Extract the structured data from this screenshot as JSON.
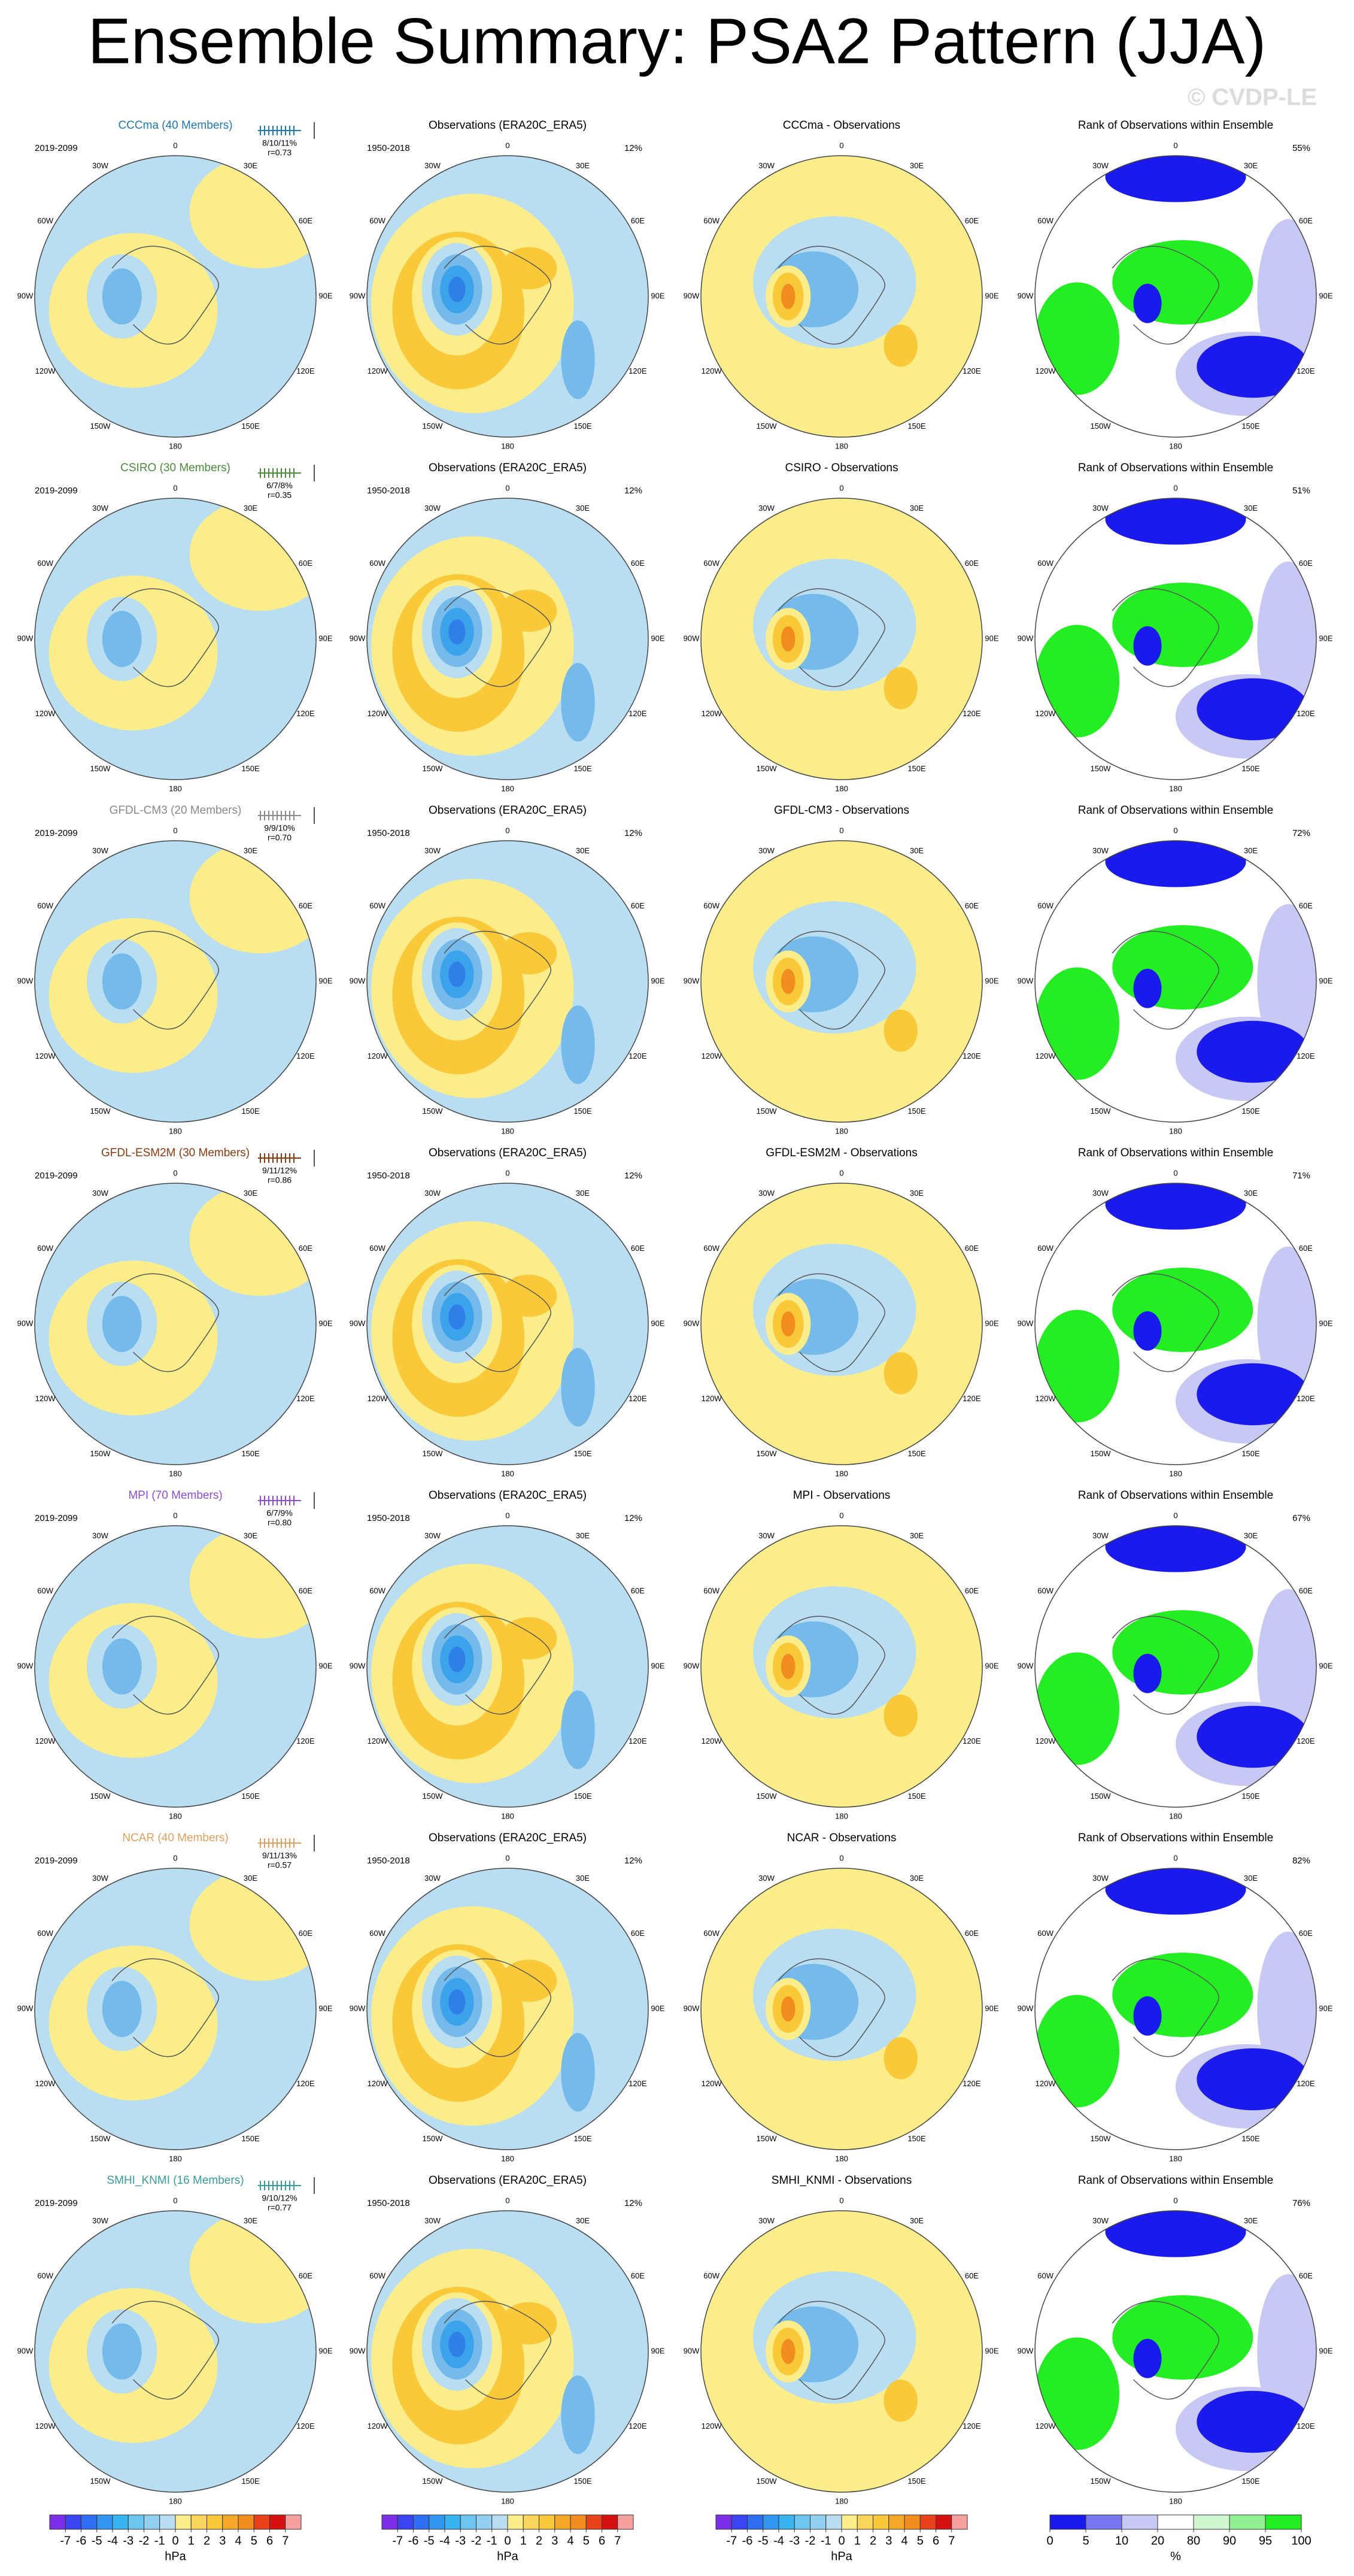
{
  "title": "Ensemble Summary: PSA2 Pattern (JJA)",
  "watermark": "© CVDP-LE",
  "longitude_labels": [
    "0",
    "30E",
    "60E",
    "90E",
    "120E",
    "150E",
    "180",
    "150W",
    "120W",
    "90W",
    "60W",
    "30W"
  ],
  "rows": [
    {
      "model": {
        "title": "CCCma (40 Members)",
        "color": "#1f78b4",
        "period": "2019-2099",
        "stats": "8/10/11%",
        "r": "r=0.73"
      },
      "observations": {
        "title": "Observations (ERA20C_ERA5)",
        "period": "1950-2018",
        "percent": "12%"
      },
      "difference": {
        "title": "CCCma - Observations"
      },
      "rank": {
        "title": "Rank of Observations within Ensemble",
        "percent": "55%"
      }
    },
    {
      "model": {
        "title": "CSIRO (30 Members)",
        "color": "#4c8a3c",
        "period": "2019-2099",
        "stats": "6/7/8%",
        "r": "r=0.35"
      },
      "observations": {
        "title": "Observations (ERA20C_ERA5)",
        "period": "1950-2018",
        "percent": "12%"
      },
      "difference": {
        "title": "CSIRO - Observations"
      },
      "rank": {
        "title": "Rank of Observations within Ensemble",
        "percent": "51%"
      }
    },
    {
      "model": {
        "title": "GFDL-CM3 (20 Members)",
        "color": "#8a8a8a",
        "period": "2019-2099",
        "stats": "9/9/10%",
        "r": "r=0.70"
      },
      "observations": {
        "title": "Observations (ERA20C_ERA5)",
        "period": "1950-2018",
        "percent": "12%"
      },
      "difference": {
        "title": "GFDL-CM3 - Observations"
      },
      "rank": {
        "title": "Rank of Observations within Ensemble",
        "percent": "72%"
      }
    },
    {
      "model": {
        "title": "GFDL-ESM2M (30 Members)",
        "color": "#8b3a10",
        "period": "2019-2099",
        "stats": "9/11/12%",
        "r": "r=0.86"
      },
      "observations": {
        "title": "Observations (ERA20C_ERA5)",
        "period": "1950-2018",
        "percent": "12%"
      },
      "difference": {
        "title": "GFDL-ESM2M - Observations"
      },
      "rank": {
        "title": "Rank of Observations within Ensemble",
        "percent": "71%"
      }
    },
    {
      "model": {
        "title": "MPI (70 Members)",
        "color": "#8a4fd8",
        "period": "2019-2099",
        "stats": "6/7/9%",
        "r": "r=0.80"
      },
      "observations": {
        "title": "Observations (ERA20C_ERA5)",
        "period": "1950-2018",
        "percent": "12%"
      },
      "difference": {
        "title": "MPI - Observations"
      },
      "rank": {
        "title": "Rank of Observations within Ensemble",
        "percent": "67%"
      }
    },
    {
      "model": {
        "title": "NCAR (40 Members)",
        "color": "#e0a060",
        "period": "2019-2099",
        "stats": "9/11/13%",
        "r": "r=0.57"
      },
      "observations": {
        "title": "Observations (ERA20C_ERA5)",
        "period": "1950-2018",
        "percent": "12%"
      },
      "difference": {
        "title": "NCAR - Observations"
      },
      "rank": {
        "title": "Rank of Observations within Ensemble",
        "percent": "82%"
      }
    },
    {
      "model": {
        "title": "SMHI_KNMI (16 Members)",
        "color": "#3a9a9a",
        "period": "2019-2099",
        "stats": "9/10/12%",
        "r": "r=0.77"
      },
      "observations": {
        "title": "Observations (ERA20C_ERA5)",
        "period": "1950-2018",
        "percent": "12%"
      },
      "difference": {
        "title": "SMHI_KNMI - Observations"
      },
      "rank": {
        "title": "Rank of Observations within Ensemble",
        "percent": "76%"
      }
    }
  ],
  "colorbars": {
    "pressure": {
      "levels": [
        -7,
        -6,
        -5,
        -4,
        -3,
        -2,
        -1,
        0,
        1,
        2,
        3,
        4,
        5,
        6,
        7
      ],
      "units": "hPa",
      "colors": [
        "#7b2ee8",
        "#3b44f0",
        "#2e6ff2",
        "#3096f0",
        "#38b4f0",
        "#6cc6ef",
        "#93d0f0",
        "#b9def2",
        "#fbee8a",
        "#f9d55a",
        "#f9c93a",
        "#f5a82a",
        "#f18d1e",
        "#e8401a",
        "#d41010",
        "#f7a0a0"
      ]
    },
    "rank": {
      "levels": [
        0,
        5,
        10,
        20,
        80,
        90,
        95,
        100
      ],
      "units": "%",
      "colors": [
        "#1a1aee",
        "#7878f0",
        "#c8c8f4",
        "#ffffff",
        "#d0f7d0",
        "#90f090",
        "#22ee22"
      ]
    }
  }
}
